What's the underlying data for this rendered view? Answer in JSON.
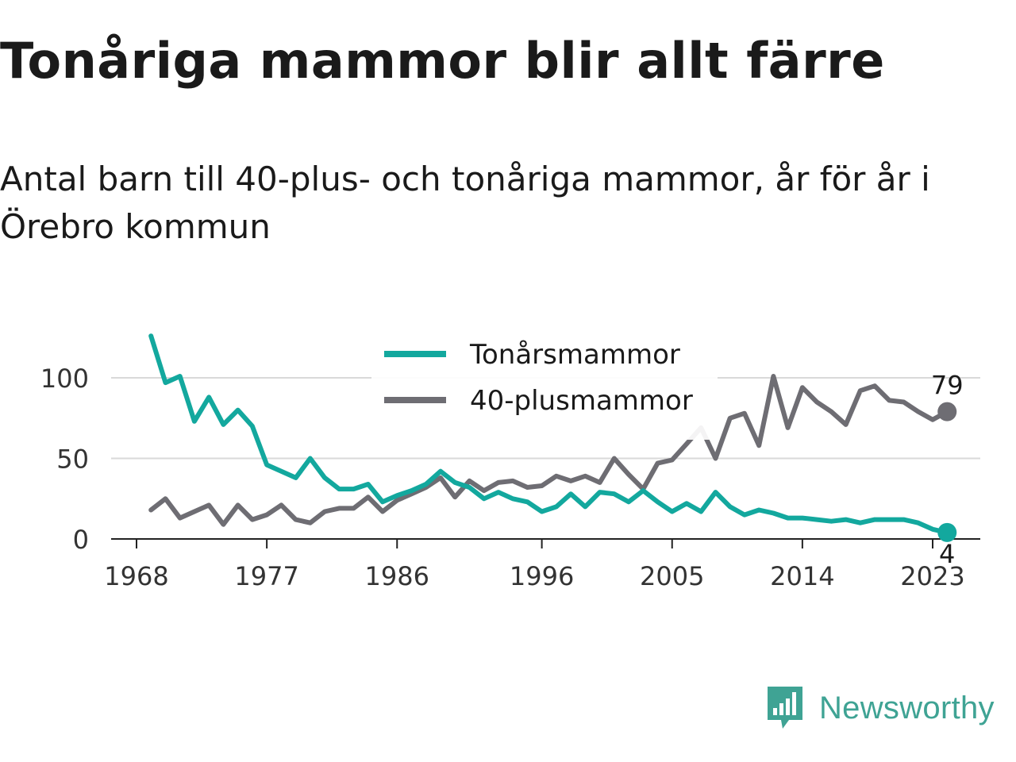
{
  "title": "Tonåriga mammor blir allt färre",
  "subtitle": "Antal barn till 40-plus- och tonåriga mammor, år för år i Örebro kommun",
  "logo": {
    "icon": "newsworthy-chart-bubble-icon",
    "text": "Newsworthy",
    "color": "#3fa394"
  },
  "chart_data": {
    "type": "line",
    "x_tick_labels": [
      "1968",
      "1977",
      "1986",
      "1996",
      "2005",
      "2014",
      "2023"
    ],
    "y_ticks": [
      0,
      50,
      100
    ],
    "xlim": [
      1968,
      2024
    ],
    "ylim": [
      0,
      125
    ],
    "grid": true,
    "legend_position": "top-center",
    "x": [
      1969,
      1970,
      1971,
      1972,
      1973,
      1974,
      1975,
      1976,
      1977,
      1978,
      1979,
      1980,
      1981,
      1982,
      1983,
      1984,
      1985,
      1986,
      1987,
      1988,
      1989,
      1990,
      1991,
      1992,
      1993,
      1994,
      1995,
      1996,
      1997,
      1998,
      1999,
      2000,
      2001,
      2002,
      2003,
      2004,
      2005,
      2006,
      2007,
      2008,
      2009,
      2010,
      2011,
      2012,
      2013,
      2014,
      2015,
      2016,
      2017,
      2018,
      2019,
      2020,
      2021,
      2022,
      2023,
      2024
    ],
    "series": [
      {
        "name": "Tonårsmammor",
        "color": "#13a89e",
        "values": [
          126,
          97,
          101,
          73,
          88,
          71,
          80,
          70,
          46,
          42,
          38,
          50,
          38,
          31,
          31,
          34,
          23,
          27,
          30,
          34,
          42,
          35,
          32,
          25,
          29,
          25,
          23,
          17,
          20,
          28,
          20,
          29,
          28,
          23,
          30,
          23,
          17,
          22,
          17,
          29,
          20,
          15,
          18,
          16,
          13,
          13,
          12,
          11,
          12,
          10,
          12,
          12,
          12,
          10,
          6,
          4
        ],
        "end_label": "4"
      },
      {
        "name": "40-plusmammor",
        "color": "#6e6d73",
        "values": [
          18,
          25,
          13,
          17,
          21,
          9,
          21,
          12,
          15,
          21,
          12,
          10,
          17,
          19,
          19,
          26,
          17,
          24,
          28,
          32,
          38,
          26,
          36,
          30,
          35,
          36,
          32,
          33,
          39,
          36,
          39,
          35,
          50,
          40,
          31,
          47,
          49,
          59,
          69,
          50,
          75,
          78,
          58,
          101,
          69,
          94,
          85,
          79,
          71,
          92,
          95,
          86,
          85,
          79,
          74,
          79
        ],
        "end_label": "79"
      }
    ]
  }
}
